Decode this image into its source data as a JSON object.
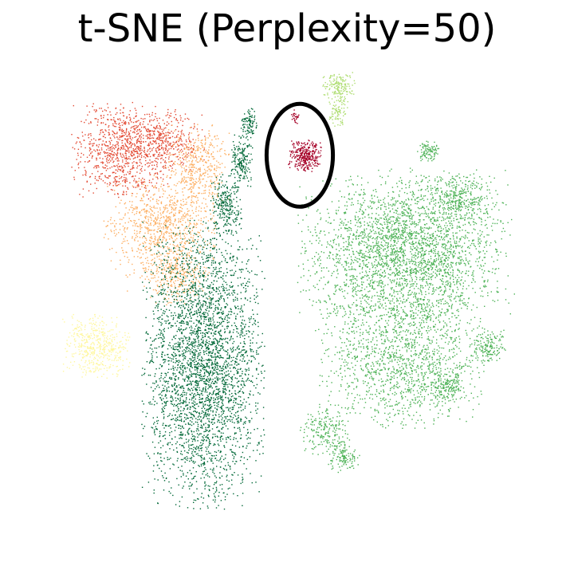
{
  "chart_data": {
    "type": "scatter",
    "title": "t-SNE (Perplexity=50)",
    "xlabel": "",
    "ylabel": "",
    "axes_visible": false,
    "grid": false,
    "legend": "none",
    "xlim": [
      -100,
      100
    ],
    "ylim": [
      -100,
      100
    ],
    "series": [
      {
        "color": "#e34a33",
        "clusters": [
          {
            "center": [
              -65,
              62
            ],
            "spread": [
              9,
              9
            ],
            "count": 900
          },
          {
            "center": [
              -48,
              66
            ],
            "spread": [
              7,
              6
            ],
            "count": 350
          }
        ]
      },
      {
        "color": "#fdae61",
        "clusters": [
          {
            "center": [
              -50,
              30
            ],
            "spread": [
              10,
              10
            ],
            "count": 850
          },
          {
            "center": [
              -36,
              54
            ],
            "spread": [
              6,
              9
            ],
            "count": 450
          },
          {
            "center": [
              -43,
              10
            ],
            "spread": [
              6,
              5
            ],
            "count": 250
          }
        ]
      },
      {
        "color": "#006837",
        "clusters": [
          {
            "center": [
              -33,
              -25
            ],
            "spread": [
              11,
              27
            ],
            "count": 3400
          },
          {
            "center": [
              -24,
              40
            ],
            "spread": [
              3,
              6
            ],
            "count": 250
          },
          {
            "center": [
              -18,
              58
            ],
            "spread": [
              2,
              5
            ],
            "count": 180
          },
          {
            "center": [
              -15,
              73
            ],
            "spread": [
              1.5,
              3
            ],
            "count": 100
          }
        ]
      },
      {
        "color": "#fff7a0",
        "clusters": [
          {
            "center": [
              -75,
              -18
            ],
            "spread": [
              6,
              6
            ],
            "count": 500
          }
        ]
      },
      {
        "color": "#a50026",
        "clusters": [
          {
            "center": [
              7,
              60
            ],
            "spread": [
              3,
              3
            ],
            "count": 320
          },
          {
            "center": [
              3,
              76
            ],
            "spread": [
              0.7,
              1.5
            ],
            "count": 25
          }
        ]
      },
      {
        "color": "#addd6f",
        "clusters": [
          {
            "center": [
              20,
              88
            ],
            "spread": [
              3,
              3
            ],
            "count": 160
          },
          {
            "center": [
              20,
              78
            ],
            "spread": [
              2,
              3
            ],
            "count": 80
          }
        ]
      },
      {
        "color": "#4db256",
        "clusters": [
          {
            "center": [
              37,
              20
            ],
            "spread": [
              15,
              15
            ],
            "count": 1500
          },
          {
            "center": [
              55,
              20
            ],
            "spread": [
              15,
              16
            ],
            "count": 1600
          },
          {
            "center": [
              45,
              -25
            ],
            "spread": [
              15,
              12
            ],
            "count": 1300
          },
          {
            "center": [
              68,
              42
            ],
            "spread": [
              6,
              5
            ],
            "count": 300
          },
          {
            "center": [
              55,
              62
            ],
            "spread": [
              2,
              2
            ],
            "count": 100
          },
          {
            "center": [
              79,
              -18
            ],
            "spread": [
              3,
              3
            ],
            "count": 150
          },
          {
            "center": [
              63,
              -34
            ],
            "spread": [
              3,
              3
            ],
            "count": 140
          },
          {
            "center": [
              22,
              -63
            ],
            "spread": [
              3,
              3
            ],
            "count": 120
          },
          {
            "center": [
              15,
              -52
            ],
            "spread": [
              5,
              5
            ],
            "count": 200
          }
        ]
      }
    ],
    "annotations": [
      {
        "shape": "ellipse",
        "center": [
          5,
          60
        ],
        "radii": [
          13,
          21
        ],
        "stroke": "#000000"
      }
    ]
  }
}
